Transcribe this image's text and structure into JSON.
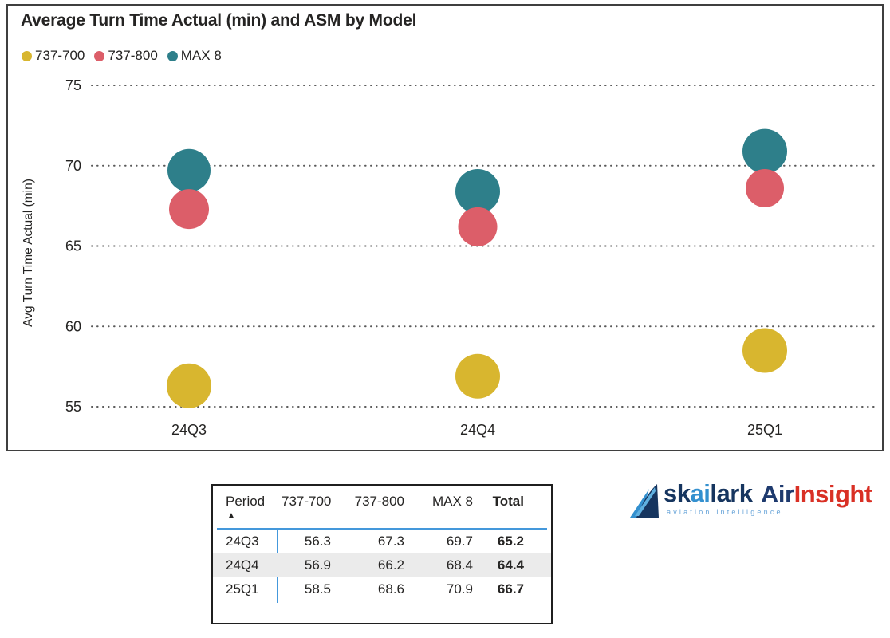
{
  "chart": {
    "title": "Average Turn Time Actual (min) and ASM by Model",
    "y_axis_title": "Avg Turn Time Actual (min)"
  },
  "chart_data": {
    "type": "scatter",
    "subtype": "bubble",
    "title": "Average Turn Time Actual (min) and ASM by Model",
    "xlabel": "",
    "ylabel": "Avg Turn Time Actual (min)",
    "categories": [
      "24Q3",
      "24Q4",
      "25Q1"
    ],
    "series": [
      {
        "name": "737-700",
        "color": "#d8b62f",
        "values": [
          56.3,
          56.9,
          58.5
        ],
        "bubble_radius_px": [
          28,
          28,
          28
        ]
      },
      {
        "name": "737-800",
        "color": "#dc5e69",
        "values": [
          67.3,
          66.2,
          68.6
        ],
        "bubble_radius_px": [
          25,
          24.5,
          24
        ]
      },
      {
        "name": "MAX 8",
        "color": "#2e7f8a",
        "values": [
          69.7,
          68.4,
          70.9
        ],
        "bubble_radius_px": [
          27,
          28,
          28
        ]
      }
    ],
    "ylim": [
      53,
      76
    ],
    "yticks": [
      75,
      70,
      65,
      60,
      55
    ],
    "grid": "horizontal-dotted",
    "legend_position": "top-left",
    "size_encodes": "ASM"
  },
  "summary_table": {
    "columns": [
      "Period",
      "737-700",
      "737-800",
      "MAX 8",
      "Total"
    ],
    "sort_indicator": "▲",
    "sorted_by": "Period",
    "rows": [
      [
        "24Q3",
        "56.3",
        "67.3",
        "69.7",
        "65.2"
      ],
      [
        "24Q4",
        "56.9",
        "66.2",
        "68.4",
        "64.4"
      ],
      [
        "25Q1",
        "58.5",
        "68.6",
        "70.9",
        "66.7"
      ]
    ]
  },
  "branding": {
    "skailark_part1": "sk",
    "skailark_part2": "ai",
    "skailark_part3": "lark",
    "tagline": "aviation intelligence",
    "airinsight_part1": "Air",
    "airinsight_part2": "Insight",
    "colors": {
      "navy": "#16355f",
      "light_blue": "#3390cf",
      "red": "#d93025"
    }
  }
}
